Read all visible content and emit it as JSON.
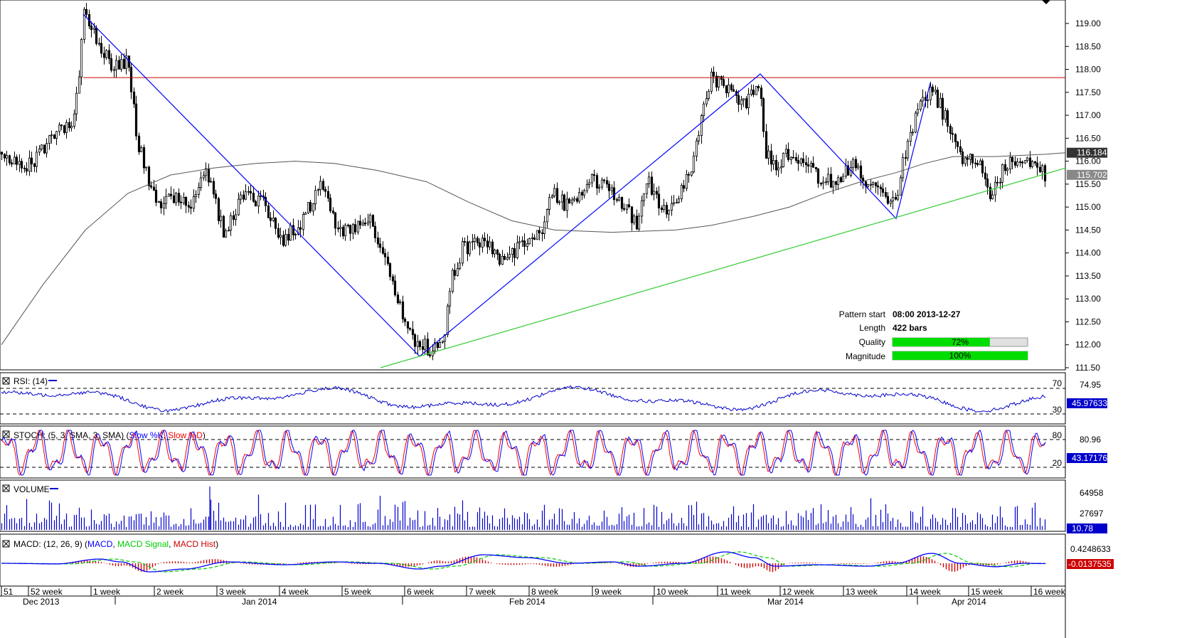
{
  "chart_data": {
    "type": "candlestick",
    "instrument_note": "",
    "price_axis": {
      "ticks": [
        "119.00",
        "118.50",
        "118.00",
        "117.50",
        "117.00",
        "116.50",
        "116.00",
        "115.50",
        "115.00",
        "114.50",
        "114.00",
        "113.50",
        "113.00",
        "112.50",
        "112.00",
        "111.50"
      ],
      "range": [
        111.5,
        119.2
      ],
      "current_price_label": "116.184",
      "last_price_label": "115.702",
      "current_price": 116.184,
      "last_price": 115.702
    },
    "time_axis": {
      "week_labels": [
        "51",
        "52 week",
        "1 week",
        "2 week",
        "3 week",
        "4 week",
        "5 week",
        "6 week",
        "7 week",
        "8 week",
        "9 week",
        "10 week",
        "11 week",
        "12 week",
        "13 week",
        "14 week",
        "15 week",
        "16 week"
      ],
      "month_labels": [
        "Dec 2013",
        "Jan 2014",
        "Feb 2014",
        "Mar 2014",
        "Apr 2014"
      ]
    },
    "resistance_level": 117.82,
    "trend_zigzag": [
      {
        "bar": 0.0,
        "price": 119.2
      },
      {
        "bar": 0.33,
        "price": 111.75
      },
      {
        "bar": 0.64,
        "price": 117.9
      },
      {
        "bar": 0.8,
        "price": 114.75
      },
      {
        "bar": 0.85,
        "price": 117.7
      }
    ],
    "support_line": {
      "from": {
        "bar": 0.33,
        "price": 111.5
      },
      "to": {
        "bar": 1.0,
        "price": 115.85
      }
    },
    "moving_average_note": "",
    "pattern": {
      "start_label": "Pattern start",
      "start_value": "08:00 2013-12-27",
      "length_label": "Length",
      "length_value": "422 bars",
      "quality_label": "Quality",
      "quality_value": "72%",
      "quality": 72,
      "magnitude_label": "Magnitude",
      "magnitude_value": "100%",
      "magnitude": 100
    },
    "rsi": {
      "title": "RSI: (14)",
      "levels": [
        "70",
        "30"
      ],
      "axis_label": "74.95",
      "current_label": "45.97633",
      "current": 45.97633
    },
    "stoch": {
      "title_prefix": "STOCH: (5, 3, SMA, 3, SMA) (",
      "k_name": "Slow %K",
      "sep": ", ",
      "d_name": "Slow %D",
      "title_suffix": ")",
      "levels": [
        "80",
        "20"
      ],
      "axis_label": "80.96",
      "current_label": "43.17176",
      "current": 43.17176
    },
    "volume": {
      "title": "VOLUME",
      "axis_labels": [
        "64958",
        "27697"
      ],
      "current_label": "10.78"
    },
    "macd": {
      "title_prefix": "MACD: (12, 26, 9) (",
      "macd_name": "MACD",
      "sep1": ", ",
      "signal_name": "MACD Signal",
      "sep2": ", ",
      "hist_name": "MACD Hist",
      "title_suffix": ")",
      "axis_label": "0.4248633",
      "current_label": "-0.0137535",
      "current": -0.0137535
    },
    "colors": {
      "candles": "#000000",
      "resistance": "#cc0000",
      "zigzag": "#0000ff",
      "support": "#33cc33",
      "ma": "#555555",
      "rsi": "#0000cc",
      "stoch_k": "#0000ff",
      "stoch_d": "#ff0000",
      "volume": "#0000cc",
      "macd": "#0000ff",
      "signal": "#00cc00",
      "hist": "#cc0000",
      "quality_bar": "#00dd00",
      "price_box": "#333333",
      "last_box": "#888888",
      "indicator_box": "#0000cc"
    }
  }
}
